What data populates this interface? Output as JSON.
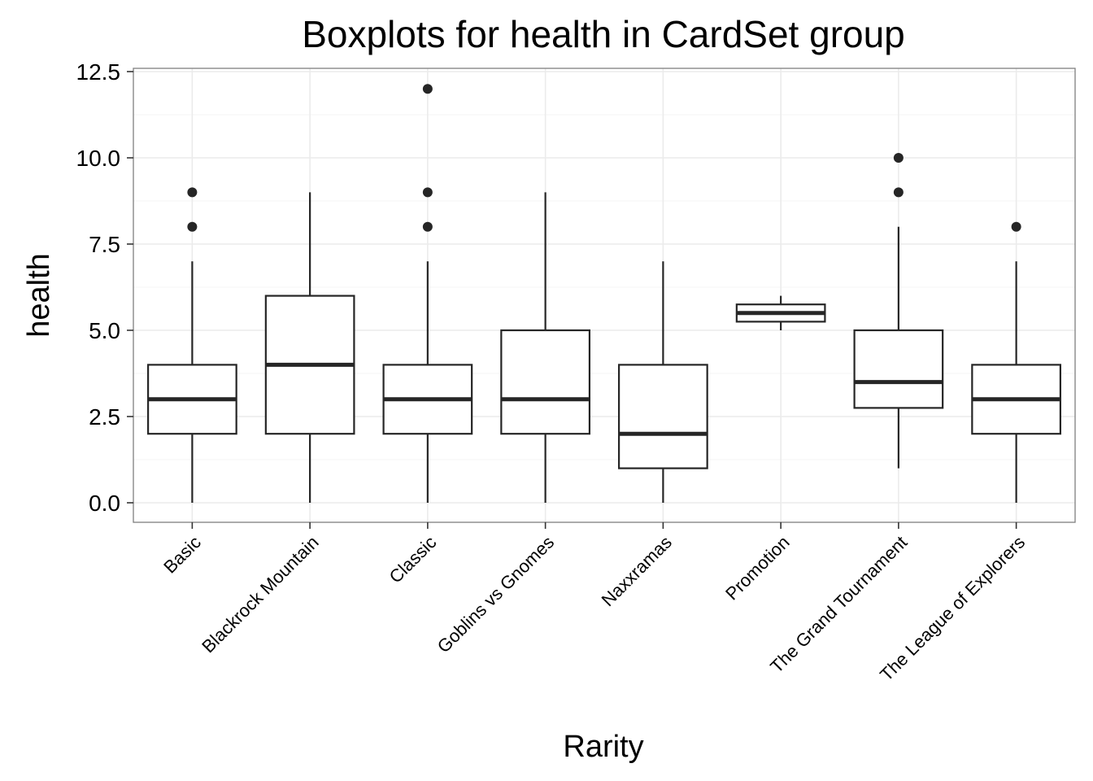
{
  "chart_data": {
    "type": "boxplot",
    "title": "Boxplots for health in CardSet group",
    "xlabel": "Rarity",
    "ylabel": "health",
    "ylim": [
      -0.5,
      12.5
    ],
    "yticks": [
      0,
      2.5,
      5,
      7.5,
      10,
      12.5
    ],
    "ytick_labels": [
      "0.0",
      "2.5",
      "5.0",
      "7.5",
      "10.0",
      "12.5"
    ],
    "grid": true,
    "categories": [
      "Basic",
      "Blackrock Mountain",
      "Classic",
      "Goblins vs Gnomes",
      "Naxxramas",
      "Promotion",
      "The Grand Tournament",
      "The League of Explorers"
    ],
    "boxes": [
      {
        "category": "Basic",
        "whisker_low": 0,
        "q1": 2,
        "median": 3,
        "q3": 4,
        "whisker_high": 7,
        "outliers": [
          8,
          9
        ]
      },
      {
        "category": "Blackrock Mountain",
        "whisker_low": 0,
        "q1": 2,
        "median": 4,
        "q3": 6,
        "whisker_high": 9,
        "outliers": []
      },
      {
        "category": "Classic",
        "whisker_low": 0,
        "q1": 2,
        "median": 3,
        "q3": 4,
        "whisker_high": 7,
        "outliers": [
          8,
          9,
          12
        ]
      },
      {
        "category": "Goblins vs Gnomes",
        "whisker_low": 0,
        "q1": 2,
        "median": 3,
        "q3": 5,
        "whisker_high": 9,
        "outliers": []
      },
      {
        "category": "Naxxramas",
        "whisker_low": 0,
        "q1": 1,
        "median": 2,
        "q3": 4,
        "whisker_high": 7,
        "outliers": []
      },
      {
        "category": "Promotion",
        "whisker_low": 5,
        "q1": 5.25,
        "median": 5.5,
        "q3": 5.75,
        "whisker_high": 6,
        "outliers": []
      },
      {
        "category": "The Grand Tournament",
        "whisker_low": 1,
        "q1": 2.75,
        "median": 3.5,
        "q3": 5,
        "whisker_high": 8,
        "outliers": [
          9,
          10
        ]
      },
      {
        "category": "The League of Explorers",
        "whisker_low": 0,
        "q1": 2,
        "median": 3,
        "q3": 4,
        "whisker_high": 7,
        "outliers": [
          8
        ]
      }
    ],
    "colors": {
      "box_stroke": "#262626",
      "box_fill": "#ffffff",
      "grid": "#ebebeb",
      "panel_border": "#7f7f7f",
      "outlier": "#262626"
    }
  }
}
